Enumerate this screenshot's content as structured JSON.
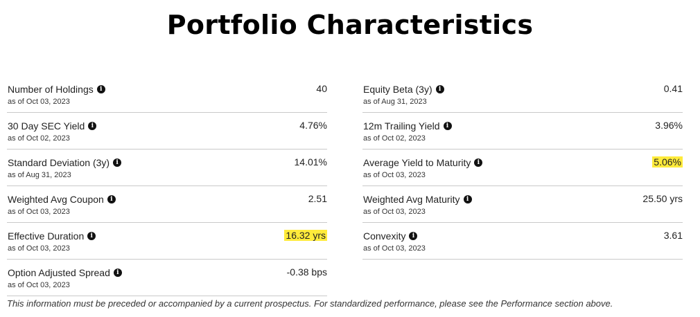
{
  "title": "Portfolio Characteristics",
  "highlight_color": "#ffeb3b",
  "left": [
    {
      "label": "Number of Holdings",
      "asof": "as of Oct 03, 2023",
      "value": "40",
      "icon": "info-icon"
    },
    {
      "label": "30 Day SEC Yield",
      "asof": "as of Oct 02, 2023",
      "value": "4.76%",
      "icon": "info-icon"
    },
    {
      "label": "Standard Deviation (3y)",
      "asof": "as of Aug 31, 2023",
      "value": "14.01%",
      "icon": "info-icon"
    },
    {
      "label": "Weighted Avg Coupon",
      "asof": "as of Oct 03, 2023",
      "value": "2.51",
      "icon": "info-icon"
    },
    {
      "label": "Effective Duration",
      "asof": "as of Oct 03, 2023",
      "value": "16.32 yrs",
      "icon": "info-icon",
      "highlighted": true
    },
    {
      "label": "Option Adjusted Spread",
      "asof": "as of Oct 03, 2023",
      "value": "-0.38 bps",
      "icon": "info-icon"
    }
  ],
  "right": [
    {
      "label": "Equity Beta (3y)",
      "asof": "as of Aug 31, 2023",
      "value": "0.41",
      "icon": "info-icon"
    },
    {
      "label": "12m Trailing Yield",
      "asof": "as of Oct 02, 2023",
      "value": "3.96%",
      "icon": "info-icon"
    },
    {
      "label": "Average Yield to Maturity",
      "asof": "as of Oct 03, 2023",
      "value": "5.06%",
      "icon": "info-icon",
      "highlighted": true
    },
    {
      "label": "Weighted Avg Maturity",
      "asof": "as of Oct 03, 2023",
      "value": "25.50 yrs",
      "icon": "info-icon"
    },
    {
      "label": "Convexity",
      "asof": "as of Oct 03, 2023",
      "value": "3.61",
      "icon": "info-icon"
    }
  ],
  "footnote": "This information must be preceded or accompanied by a current prospectus. For standardized performance, please see the Performance section above."
}
